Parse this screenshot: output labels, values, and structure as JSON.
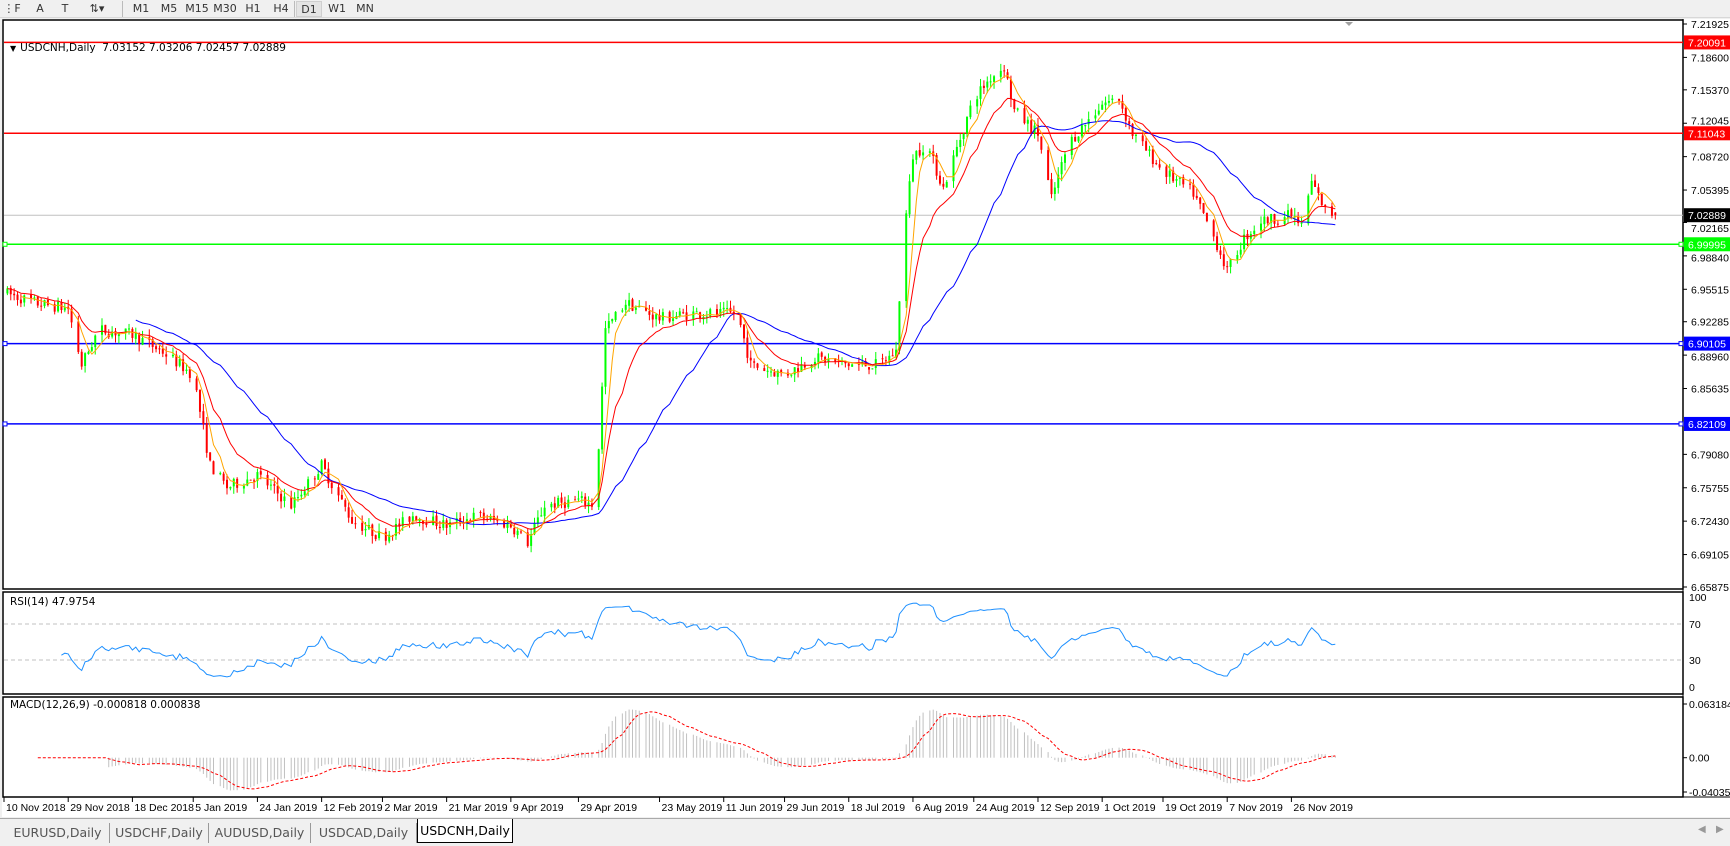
{
  "toolbar": {
    "tools": [
      {
        "name": "period-separator-icon",
        "glyph": "⋮F"
      },
      {
        "name": "text-tool-icon",
        "glyph": "A"
      },
      {
        "name": "text-label-tool-icon",
        "glyph": "T"
      },
      {
        "name": "arrows-tool-icon",
        "glyph": "⇅▾"
      }
    ],
    "timeframes": [
      "M1",
      "M5",
      "M15",
      "M30",
      "H1",
      "H4",
      "D1",
      "W1",
      "MN"
    ],
    "active_timeframe": "D1"
  },
  "tabs": [
    "EURUSD,Daily",
    "USDCHF,Daily",
    "AUDUSD,Daily",
    "USDCAD,Daily",
    "USDCNH,Daily"
  ],
  "active_tab": "USDCNH,Daily",
  "chart_data": {
    "type": "candlestick",
    "symbol_label": "USDCNH,Daily",
    "ohlc": {
      "open": 7.03152,
      "high": 7.03206,
      "low": 7.02457,
      "close": 7.02889
    },
    "ohlc_text": "7.03152 7.03206 7.02457 7.02889",
    "colors": {
      "bull": "#00ff00",
      "bear": "#ff0000",
      "ma_fast": "#ffa500",
      "ma_mid": "#ff0000",
      "ma_slow": "#0000ff",
      "rsi": "#1e90ff",
      "macd_hist": "#c0c0c0",
      "macd_signal": "#ff0000"
    },
    "price_axis": {
      "min": 6.65875,
      "max": 7.21925,
      "ticks": [
        "7.21925",
        "7.18600",
        "7.15370",
        "7.12045",
        "7.08720",
        "7.05395",
        "7.02165",
        "6.98840",
        "6.95515",
        "6.92285",
        "6.88960",
        "6.85635",
        "6.79080",
        "6.75755",
        "6.72430",
        "6.69105",
        "6.65875"
      ]
    },
    "current_price": {
      "value": 7.02889,
      "label": "7.02889",
      "color": "#000000"
    },
    "levels": [
      {
        "value": 7.20091,
        "label": "7.20091",
        "color": "#ff0000"
      },
      {
        "value": 7.11043,
        "label": "7.11043",
        "color": "#ff0000"
      },
      {
        "value": 6.99995,
        "label": "6.99995",
        "color": "#00ff00"
      },
      {
        "value": 6.90105,
        "label": "6.90105",
        "color": "#0000ff"
      },
      {
        "value": 6.82109,
        "label": "6.82109",
        "color": "#0000ff"
      }
    ],
    "x_ticks": [
      "10 Nov 2018",
      "29 Nov 2018",
      "18 Dec 2018",
      "5 Jan 2019",
      "24 Jan 2019",
      "12 Feb 2019",
      "2 Mar 2019",
      "21 Mar 2019",
      "9 Apr 2019",
      "29 Apr 2019",
      "23 May 2019",
      "11 Jun 2019",
      "29 Jun 2019",
      "18 Jul 2019",
      "6 Aug 2019",
      "24 Aug 2019",
      "12 Sep 2019",
      "1 Oct 2019",
      "19 Oct 2019",
      "7 Nov 2019",
      "26 Nov 2019"
    ],
    "approx_closes": [
      [
        "2018-11-10",
        6.952
      ],
      [
        "2018-11-20",
        6.941
      ],
      [
        "2018-11-29",
        6.936
      ],
      [
        "2018-12-03",
        6.88
      ],
      [
        "2018-12-08",
        6.915
      ],
      [
        "2018-12-18",
        6.91
      ],
      [
        "2018-12-27",
        6.893
      ],
      [
        "2019-01-05",
        6.87
      ],
      [
        "2019-01-10",
        6.78
      ],
      [
        "2019-01-15",
        6.758
      ],
      [
        "2019-01-24",
        6.77
      ],
      [
        "2019-02-03",
        6.74
      ],
      [
        "2019-02-12",
        6.78
      ],
      [
        "2019-02-21",
        6.725
      ],
      [
        "2019-03-02",
        6.708
      ],
      [
        "2019-03-11",
        6.73
      ],
      [
        "2019-03-21",
        6.72
      ],
      [
        "2019-03-30",
        6.73
      ],
      [
        "2019-04-09",
        6.72
      ],
      [
        "2019-04-14",
        6.703
      ],
      [
        "2019-04-19",
        6.74
      ],
      [
        "2019-04-29",
        6.745
      ],
      [
        "2019-05-04",
        6.74
      ],
      [
        "2019-05-07",
        6.915
      ],
      [
        "2019-05-13",
        6.942
      ],
      [
        "2019-05-23",
        6.926
      ],
      [
        "2019-06-01",
        6.931
      ],
      [
        "2019-06-11",
        6.931
      ],
      [
        "2019-06-15",
        6.931
      ],
      [
        "2019-06-19",
        6.88
      ],
      [
        "2019-06-29",
        6.87
      ],
      [
        "2019-07-08",
        6.887
      ],
      [
        "2019-07-18",
        6.88
      ],
      [
        "2019-07-27",
        6.88
      ],
      [
        "2019-08-01",
        6.893
      ],
      [
        "2019-08-03",
        7.0
      ],
      [
        "2019-08-06",
        7.088
      ],
      [
        "2019-08-10",
        7.1
      ],
      [
        "2019-08-15",
        7.056
      ],
      [
        "2019-08-24",
        7.145
      ],
      [
        "2019-08-29",
        7.166
      ],
      [
        "2019-09-02",
        7.177
      ],
      [
        "2019-09-05",
        7.133
      ],
      [
        "2019-09-12",
        7.11
      ],
      [
        "2019-09-16",
        7.045
      ],
      [
        "2019-09-21",
        7.1
      ],
      [
        "2019-10-01",
        7.14
      ],
      [
        "2019-10-06",
        7.145
      ],
      [
        "2019-10-10",
        7.11
      ],
      [
        "2019-10-19",
        7.073
      ],
      [
        "2019-10-28",
        7.051
      ],
      [
        "2019-11-04",
        7.0
      ],
      [
        "2019-11-07",
        6.973
      ],
      [
        "2019-11-12",
        7.006
      ],
      [
        "2019-11-17",
        7.023
      ],
      [
        "2019-11-26",
        7.029
      ],
      [
        "2019-11-29",
        7.018
      ],
      [
        "2019-12-02",
        7.062
      ],
      [
        "2019-12-06",
        7.034
      ],
      [
        "2019-12-09",
        7.02889
      ]
    ],
    "rsi": {
      "label": "RSI(14) 47.9754",
      "period": 14,
      "value": 47.9754,
      "ticks": [
        "100",
        "70",
        "30",
        "0"
      ],
      "levels": [
        70,
        30
      ]
    },
    "macd": {
      "label": "MACD(12,26,9) -0.000818 0.000838",
      "fast": 12,
      "slow": 26,
      "signal": 9,
      "main": -0.000818,
      "signal_value": 0.000838,
      "ticks": [
        "0.063184",
        "0.00",
        "-0.040355"
      ],
      "max": 0.063184,
      "min": -0.040355
    }
  }
}
